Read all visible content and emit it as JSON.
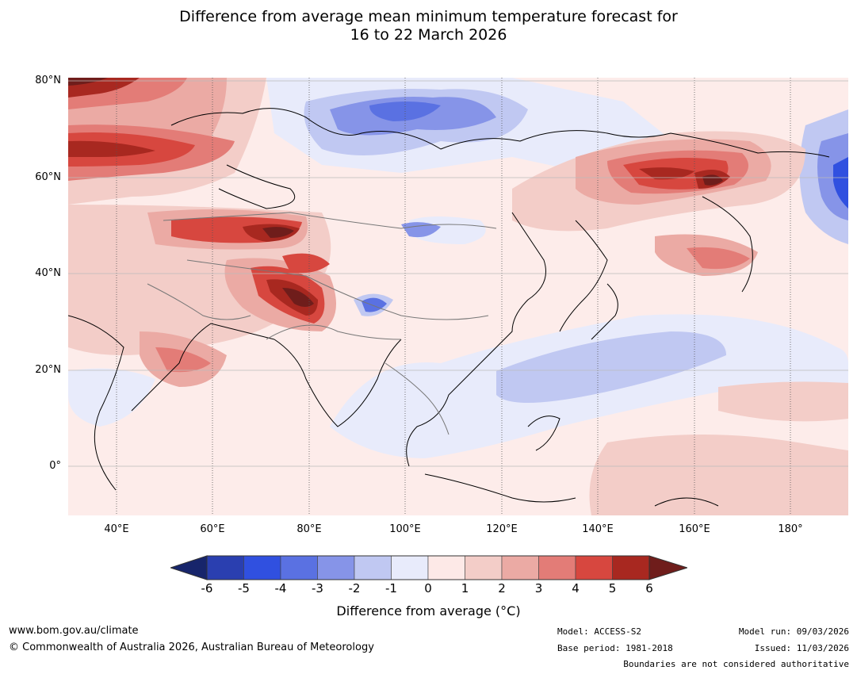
{
  "title": {
    "line1": "Difference from average mean minimum temperature forecast for",
    "line2": "16 to 22 March 2026"
  },
  "map": {
    "lat_labels": [
      "80°N",
      "60°N",
      "40°N",
      "20°N",
      "0°"
    ],
    "lon_labels": [
      "40°E",
      "60°E",
      "80°E",
      "100°E",
      "120°E",
      "140°E",
      "160°E",
      "180°"
    ],
    "extent": {
      "lon_min": 30,
      "lon_max": 190,
      "lat_min": -10,
      "lat_max": 80
    }
  },
  "colorbar": {
    "ticks": [
      "-6",
      "-5",
      "-4",
      "-3",
      "-2",
      "-1",
      "0",
      "1",
      "2",
      "3",
      "4",
      "5",
      "6"
    ],
    "colors": [
      "#17256b",
      "#2a3fb0",
      "#3050e0",
      "#5a71e2",
      "#8694e8",
      "#c0c8f2",
      "#e8ebfb",
      "#fde9e7",
      "#f3cdc8",
      "#ebaaa4",
      "#e37c77",
      "#d7473f",
      "#a82820",
      "#6f1d1b"
    ],
    "label": "Difference from average (°C)"
  },
  "footer": {
    "site": "www.bom.gov.au/climate",
    "copyright": "© Commonwealth of Australia 2026, Australian Bureau of Meteorology",
    "model": "Model: ACCESS-S2",
    "base_period": "Base period: 1981-2018",
    "model_run": "Model run: 09/03/2026",
    "issued": "Issued: 11/03/2026",
    "disclaimer": "Boundaries are not considered authoritative"
  }
}
